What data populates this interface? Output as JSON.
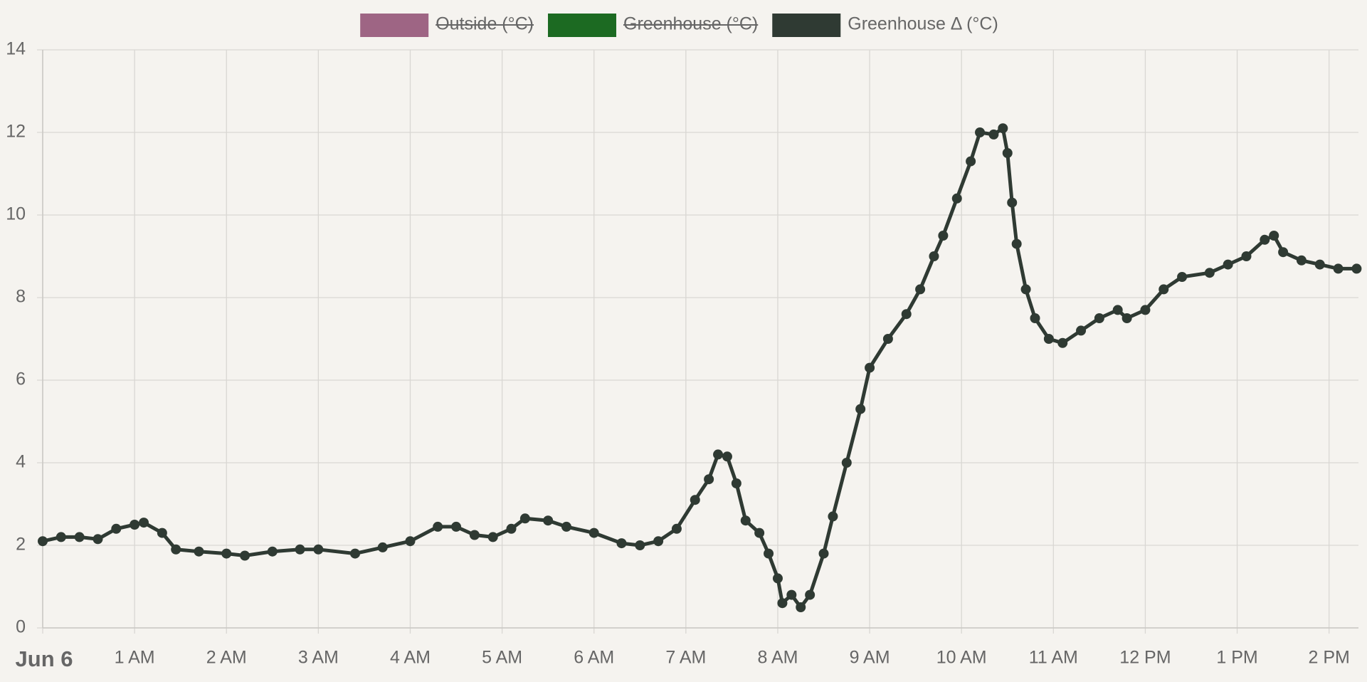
{
  "chart_data": {
    "type": "line",
    "series": [
      {
        "name": "Outside (°C)",
        "color": "#9e6584",
        "hidden": true
      },
      {
        "name": "Greenhouse (°C)",
        "color": "#1c6a22",
        "hidden": true
      },
      {
        "name": "Greenhouse Δ (°C)",
        "color": "#2f3a33",
        "x": [
          0.0,
          0.2,
          0.4,
          0.6,
          0.8,
          1.0,
          1.1,
          1.3,
          1.45,
          1.7,
          2.0,
          2.2,
          2.5,
          2.8,
          3.0,
          3.4,
          3.7,
          4.0,
          4.3,
          4.5,
          4.7,
          4.9,
          5.1,
          5.25,
          5.5,
          5.7,
          6.0,
          6.3,
          6.5,
          6.7,
          6.9,
          7.1,
          7.25,
          7.35,
          7.45,
          7.55,
          7.65,
          7.8,
          7.9,
          8.0,
          8.05,
          8.15,
          8.25,
          8.35,
          8.5,
          8.6,
          8.75,
          8.9,
          9.0,
          9.2,
          9.4,
          9.55,
          9.7,
          9.8,
          9.95,
          10.1,
          10.2,
          10.35,
          10.45,
          10.5,
          10.55,
          10.6,
          10.7,
          10.8,
          10.95,
          11.1,
          11.3,
          11.5,
          11.7,
          11.8,
          12.0,
          12.2,
          12.4,
          12.7,
          12.9,
          13.1,
          13.3,
          13.4,
          13.5,
          13.7,
          13.9,
          14.1,
          14.3
        ],
        "values": [
          2.1,
          2.2,
          2.2,
          2.15,
          2.4,
          2.5,
          2.55,
          2.3,
          1.9,
          1.85,
          1.8,
          1.75,
          1.85,
          1.9,
          1.9,
          1.8,
          1.95,
          2.1,
          2.45,
          2.45,
          2.25,
          2.2,
          2.4,
          2.65,
          2.6,
          2.45,
          2.3,
          2.05,
          2.0,
          2.1,
          2.4,
          3.1,
          3.6,
          4.2,
          4.15,
          3.5,
          2.6,
          2.3,
          1.8,
          1.2,
          0.6,
          0.8,
          0.5,
          0.8,
          1.8,
          2.7,
          4.0,
          5.3,
          6.3,
          7.0,
          7.6,
          8.2,
          9.0,
          9.5,
          10.4,
          11.3,
          12.0,
          11.95,
          12.1,
          11.5,
          10.3,
          9.3,
          8.2,
          7.5,
          7.0,
          6.9,
          7.2,
          7.5,
          7.7,
          7.5,
          7.7,
          8.2,
          8.5,
          8.6,
          8.8,
          9.0,
          9.4,
          9.5,
          9.1,
          8.9,
          8.8,
          8.7,
          8.7
        ]
      }
    ],
    "xlim": [
      0,
      14.32
    ],
    "xticks": [
      {
        "value": 0,
        "label": "Jun 6"
      },
      {
        "value": 1,
        "label": "1 AM"
      },
      {
        "value": 2,
        "label": "2 AM"
      },
      {
        "value": 3,
        "label": "3 AM"
      },
      {
        "value": 4,
        "label": "4 AM"
      },
      {
        "value": 5,
        "label": "5 AM"
      },
      {
        "value": 6,
        "label": "6 AM"
      },
      {
        "value": 7,
        "label": "7 AM"
      },
      {
        "value": 8,
        "label": "8 AM"
      },
      {
        "value": 9,
        "label": "9 AM"
      },
      {
        "value": 10,
        "label": "10 AM"
      },
      {
        "value": 11,
        "label": "11 AM"
      },
      {
        "value": 12,
        "label": "12 PM"
      },
      {
        "value": 13,
        "label": "1 PM"
      },
      {
        "value": 14,
        "label": "2 PM"
      }
    ],
    "ylim": [
      0,
      14
    ],
    "yticks": [
      0,
      2,
      4,
      6,
      8,
      10,
      12,
      14
    ],
    "grid": true,
    "legend": "top"
  }
}
